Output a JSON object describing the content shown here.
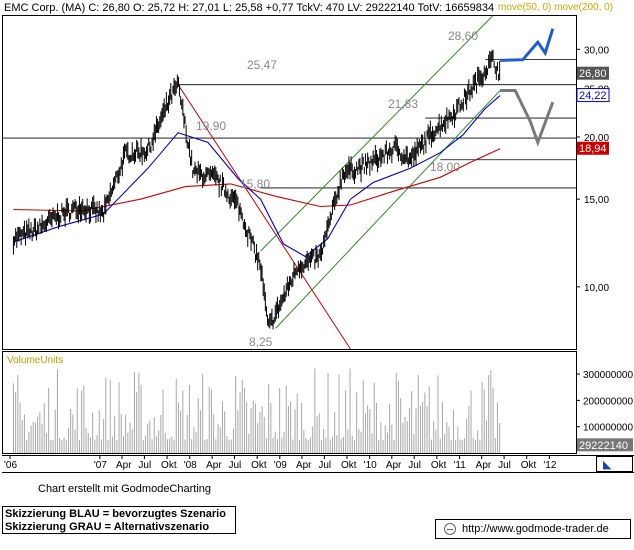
{
  "header": {
    "symbol": "EMC Corp. (MA)",
    "ohlc": "C: 26,80  O: 25,72  H: 27,01  L: 25,58  +0,77  TckV: 470  LV: 29222140  TotV: 16659834",
    "ma_label": "move(50, 0)  move(200, 0)"
  },
  "colors": {
    "price": "#000000",
    "ma50": "#0000cc",
    "ma200": "#cc0000",
    "blue_scenario": "#1e5bd6",
    "grey_scenario": "#7a7a7a",
    "trend_channel": "#3a8a2a",
    "downtrend": "#cc0000",
    "levels": "#000000"
  },
  "chart_data": [
    {
      "type": "line",
      "title": "",
      "y_axis_ticks": [
        "30,00",
        "25,00",
        "20,00",
        "15,00",
        "10,00"
      ],
      "y_scale": "log",
      "ylim": [
        7.5,
        35
      ],
      "x_axis_ticks": [
        "'06",
        "'07",
        "Apr",
        "Jul",
        "Okt",
        "'08",
        "Apr",
        "Jul",
        "Okt",
        "'09",
        "Apr",
        "Jul",
        "Okt",
        "'10",
        "Apr",
        "Jul",
        "Okt",
        "'11",
        "Apr",
        "Jul",
        "Okt",
        "'12"
      ],
      "x_start": "2006-01-01",
      "x_end": "2012-02-01",
      "price_series": {
        "name": "EMC Corp.",
        "dates": [
          "2006-01",
          "2006-04",
          "2006-07",
          "2006-10",
          "2007-01",
          "2007-04",
          "2007-07",
          "2007-10",
          "2007-11",
          "2008-01",
          "2008-04",
          "2008-07",
          "2008-10",
          "2008-11",
          "2009-01",
          "2009-03",
          "2009-06",
          "2009-09",
          "2009-12",
          "2010-04",
          "2010-06",
          "2010-09",
          "2010-12",
          "2011-03",
          "2011-05",
          "2011-06"
        ],
        "values": [
          12.5,
          13.0,
          13.9,
          14.5,
          14.0,
          18.5,
          18.8,
          24.0,
          25.47,
          17.0,
          16.5,
          14.6,
          11.0,
          8.25,
          9.5,
          11.0,
          11.5,
          17.0,
          17.5,
          19.0,
          18.0,
          20.5,
          22.5,
          26.0,
          28.6,
          26.8
        ]
      },
      "ma50": {
        "name": "move(50, 0)",
        "dates": [
          "2006-01",
          "2006-07",
          "2007-01",
          "2007-07",
          "2007-11",
          "2008-03",
          "2008-07",
          "2008-10",
          "2009-01",
          "2009-04",
          "2009-07",
          "2009-10",
          "2010-01",
          "2010-06",
          "2010-10",
          "2011-01",
          "2011-04",
          "2011-06"
        ],
        "values": [
          12.3,
          13.2,
          14.0,
          17.3,
          20.4,
          19.5,
          16.5,
          15.0,
          12.2,
          11.5,
          12.5,
          15.0,
          16.2,
          17.3,
          18.6,
          20.2,
          22.8,
          24.22
        ]
      },
      "ma200": {
        "name": "move(200, 0)",
        "dates": [
          "2006-01",
          "2006-10",
          "2007-06",
          "2007-12",
          "2008-06",
          "2008-12",
          "2009-06",
          "2009-10",
          "2010-04",
          "2010-10",
          "2011-02",
          "2011-06"
        ],
        "values": [
          14.3,
          14.2,
          15.0,
          15.9,
          16.1,
          15.2,
          14.5,
          14.6,
          15.6,
          16.6,
          17.8,
          18.94
        ]
      },
      "horizontal_levels": [
        25.47,
        28.6,
        19.9,
        21.83,
        15.8,
        18.0
      ],
      "level_labels": [
        "25,47",
        "28,60",
        "19,90",
        "21,83",
        "15,80",
        "18,00",
        "8,25"
      ],
      "last_value_badges": [
        "26,80",
        "24,22",
        "18,94"
      ],
      "scenario_blue": {
        "label": "bevorzugtes Szenario",
        "dates": [
          "2011-06",
          "2011-09",
          "2011-11",
          "2011-12",
          "2012-01"
        ],
        "values": [
          28.5,
          28.6,
          31.0,
          29.5,
          33.0
        ]
      },
      "scenario_grey": {
        "label": "Alternativszenario",
        "dates": [
          "2011-06",
          "2011-08",
          "2011-10",
          "2011-11",
          "2012-01"
        ],
        "values": [
          24.8,
          24.8,
          21.5,
          19.5,
          23.5
        ]
      },
      "grid": false
    },
    {
      "type": "bar",
      "title": "VolumeUnits",
      "y_axis_ticks": [
        "300000000",
        "200000000",
        "100000000"
      ],
      "ylim": [
        0,
        380000000
      ],
      "last_value_badge": "29222140",
      "note": "daily volume bars"
    }
  ],
  "footer": {
    "credit": "Chart erstellt mit GodmodeCharting",
    "legend_line1": "Skizzierung BLAU = bevorzugtes Szenario",
    "legend_line2": "Skizzierung GRAU = Alternativszenario",
    "url": "http://www.godmode-trader.de"
  }
}
